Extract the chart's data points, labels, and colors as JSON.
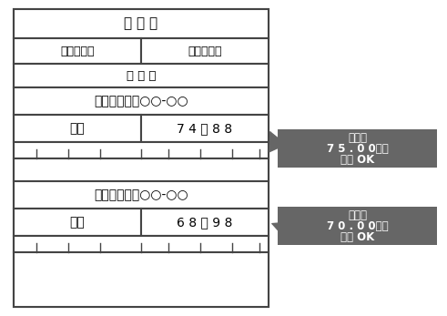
{
  "title": "所 在 地",
  "col1_header": "地目・種類",
  "col2_header": "面積（㎡）",
  "eval_label": "評 価 額",
  "row1_address": "永和２丁目　○○-○○",
  "row1_type": "宅地",
  "row1_area": "7 4 ｜ 8 8",
  "row2_address": "永和２丁目　○○-○○",
  "row2_type": "居宅",
  "row2_area": "6 8 ｜ 9 8",
  "annotation1_line1": "ここが",
  "annotation1_line2": "7 5 . 0 0以下",
  "annotation1_line3": "なら OK",
  "annotation2_line1": "ここが",
  "annotation2_line2": "7 0 . 0 0以下",
  "annotation2_line3": "なら OK",
  "annotation_bg": "#666666",
  "annotation_fg": "#ffffff",
  "border_color": "#444444",
  "text_color": "#000000",
  "fig_bg": "#ffffff"
}
